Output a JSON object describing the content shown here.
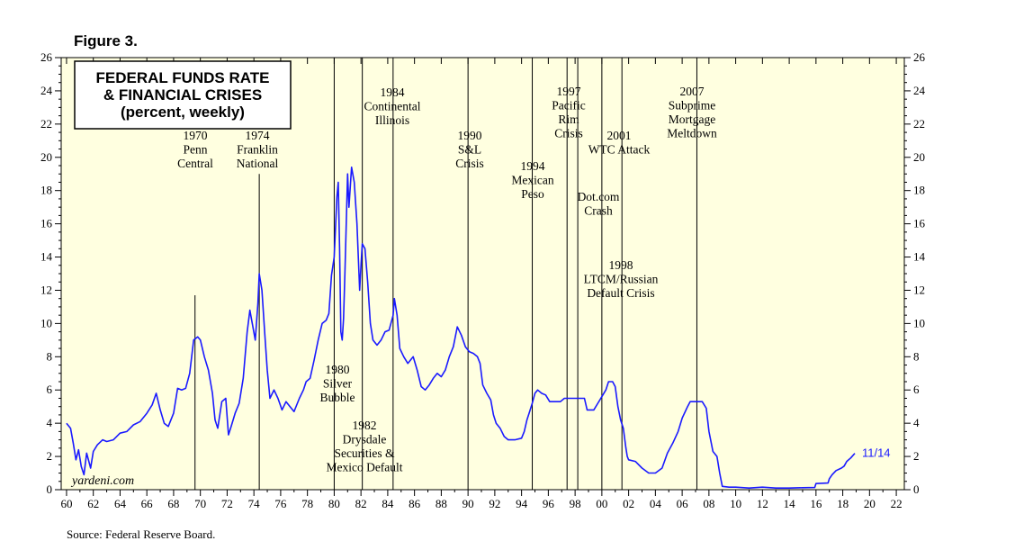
{
  "figure_label": "Figure 3.",
  "source": "Source: Federal Reserve Board.",
  "watermark": "yardeni.com",
  "colors": {
    "series": "#1a1aff",
    "plot_bg": "#ffffe0",
    "text": "#000000"
  },
  "chart_data": {
    "type": "line",
    "title_lines": [
      "FEDERAL FUNDS RATE",
      "& FINANCIAL CRISES",
      "(percent, weekly)"
    ],
    "x_range": [
      1959.6,
      2022.6
    ],
    "ylim": [
      0,
      26
    ],
    "y_ticks": [
      0,
      2,
      4,
      6,
      8,
      10,
      12,
      14,
      16,
      18,
      20,
      22,
      24,
      26
    ],
    "x_ticks": [
      {
        "year": 1960,
        "label": "60"
      },
      {
        "year": 1962,
        "label": "62"
      },
      {
        "year": 1964,
        "label": "64"
      },
      {
        "year": 1966,
        "label": "66"
      },
      {
        "year": 1968,
        "label": "68"
      },
      {
        "year": 1970,
        "label": "70"
      },
      {
        "year": 1972,
        "label": "72"
      },
      {
        "year": 1974,
        "label": "74"
      },
      {
        "year": 1976,
        "label": "76"
      },
      {
        "year": 1978,
        "label": "78"
      },
      {
        "year": 1980,
        "label": "80"
      },
      {
        "year": 1982,
        "label": "82"
      },
      {
        "year": 1984,
        "label": "84"
      },
      {
        "year": 1986,
        "label": "86"
      },
      {
        "year": 1988,
        "label": "88"
      },
      {
        "year": 1990,
        "label": "90"
      },
      {
        "year": 1992,
        "label": "92"
      },
      {
        "year": 1994,
        "label": "94"
      },
      {
        "year": 1996,
        "label": "96"
      },
      {
        "year": 1998,
        "label": "98"
      },
      {
        "year": 2000,
        "label": "00"
      },
      {
        "year": 2002,
        "label": "02"
      },
      {
        "year": 2004,
        "label": "04"
      },
      {
        "year": 2006,
        "label": "06"
      },
      {
        "year": 2008,
        "label": "08"
      },
      {
        "year": 2010,
        "label": "10"
      },
      {
        "year": 2012,
        "label": "12"
      },
      {
        "year": 2014,
        "label": "14"
      },
      {
        "year": 2016,
        "label": "16"
      },
      {
        "year": 2018,
        "label": "18"
      },
      {
        "year": 2020,
        "label": "20"
      },
      {
        "year": 2022,
        "label": "22"
      }
    ],
    "end_label": "11/14",
    "grid": false,
    "series": [
      {
        "points": [
          [
            1960.0,
            4.0
          ],
          [
            1960.3,
            3.7
          ],
          [
            1960.5,
            2.8
          ],
          [
            1960.7,
            1.8
          ],
          [
            1960.9,
            2.4
          ],
          [
            1961.1,
            1.4
          ],
          [
            1961.3,
            0.9
          ],
          [
            1961.5,
            2.2
          ],
          [
            1961.8,
            1.3
          ],
          [
            1962.0,
            2.3
          ],
          [
            1962.3,
            2.7
          ],
          [
            1962.7,
            3.0
          ],
          [
            1963.0,
            2.9
          ],
          [
            1963.5,
            3.0
          ],
          [
            1964.0,
            3.4
          ],
          [
            1964.5,
            3.5
          ],
          [
            1965.0,
            3.9
          ],
          [
            1965.5,
            4.1
          ],
          [
            1966.0,
            4.6
          ],
          [
            1966.4,
            5.1
          ],
          [
            1966.7,
            5.8
          ],
          [
            1967.0,
            4.8
          ],
          [
            1967.3,
            4.0
          ],
          [
            1967.6,
            3.8
          ],
          [
            1968.0,
            4.6
          ],
          [
            1968.3,
            6.1
          ],
          [
            1968.6,
            6.0
          ],
          [
            1968.9,
            6.1
          ],
          [
            1969.2,
            7.0
          ],
          [
            1969.5,
            9.0
          ],
          [
            1969.8,
            9.2
          ],
          [
            1970.0,
            9.0
          ],
          [
            1970.3,
            8.0
          ],
          [
            1970.6,
            7.2
          ],
          [
            1970.9,
            5.8
          ],
          [
            1971.1,
            4.2
          ],
          [
            1971.3,
            3.7
          ],
          [
            1971.6,
            5.3
          ],
          [
            1971.9,
            5.5
          ],
          [
            1972.1,
            3.3
          ],
          [
            1972.3,
            3.8
          ],
          [
            1972.6,
            4.6
          ],
          [
            1972.9,
            5.2
          ],
          [
            1973.2,
            6.7
          ],
          [
            1973.5,
            9.5
          ],
          [
            1973.7,
            10.8
          ],
          [
            1973.9,
            9.9
          ],
          [
            1974.1,
            9.0
          ],
          [
            1974.3,
            11.2
          ],
          [
            1974.4,
            13.0
          ],
          [
            1974.6,
            12.0
          ],
          [
            1974.8,
            9.5
          ],
          [
            1975.0,
            7.2
          ],
          [
            1975.2,
            5.5
          ],
          [
            1975.5,
            6.0
          ],
          [
            1975.8,
            5.5
          ],
          [
            1976.1,
            4.8
          ],
          [
            1976.4,
            5.3
          ],
          [
            1976.7,
            5.0
          ],
          [
            1977.0,
            4.7
          ],
          [
            1977.4,
            5.5
          ],
          [
            1977.7,
            6.0
          ],
          [
            1977.9,
            6.5
          ],
          [
            1978.2,
            6.7
          ],
          [
            1978.5,
            7.8
          ],
          [
            1978.8,
            9.0
          ],
          [
            1979.1,
            10.0
          ],
          [
            1979.4,
            10.2
          ],
          [
            1979.6,
            10.6
          ],
          [
            1979.8,
            12.9
          ],
          [
            1980.0,
            14.0
          ],
          [
            1980.2,
            17.6
          ],
          [
            1980.3,
            18.5
          ],
          [
            1980.4,
            14.5
          ],
          [
            1980.5,
            9.5
          ],
          [
            1980.6,
            9.0
          ],
          [
            1980.7,
            10.3
          ],
          [
            1980.8,
            13.0
          ],
          [
            1981.0,
            19.0
          ],
          [
            1981.1,
            17.0
          ],
          [
            1981.3,
            19.4
          ],
          [
            1981.5,
            18.5
          ],
          [
            1981.7,
            16.0
          ],
          [
            1981.9,
            12.0
          ],
          [
            1982.0,
            13.5
          ],
          [
            1982.1,
            14.8
          ],
          [
            1982.3,
            14.5
          ],
          [
            1982.5,
            12.5
          ],
          [
            1982.7,
            10.0
          ],
          [
            1982.9,
            9.0
          ],
          [
            1983.2,
            8.7
          ],
          [
            1983.5,
            9.0
          ],
          [
            1983.8,
            9.5
          ],
          [
            1984.1,
            9.6
          ],
          [
            1984.4,
            10.5
          ],
          [
            1984.5,
            11.5
          ],
          [
            1984.7,
            10.5
          ],
          [
            1984.9,
            8.5
          ],
          [
            1985.2,
            8.0
          ],
          [
            1985.5,
            7.6
          ],
          [
            1985.9,
            8.0
          ],
          [
            1986.2,
            7.2
          ],
          [
            1986.5,
            6.2
          ],
          [
            1986.8,
            6.0
          ],
          [
            1987.1,
            6.3
          ],
          [
            1987.4,
            6.7
          ],
          [
            1987.7,
            7.0
          ],
          [
            1988.0,
            6.8
          ],
          [
            1988.3,
            7.2
          ],
          [
            1988.6,
            8.0
          ],
          [
            1988.9,
            8.6
          ],
          [
            1989.2,
            9.8
          ],
          [
            1989.5,
            9.3
          ],
          [
            1989.8,
            8.6
          ],
          [
            1990.1,
            8.3
          ],
          [
            1990.4,
            8.2
          ],
          [
            1990.7,
            8.0
          ],
          [
            1990.9,
            7.6
          ],
          [
            1991.1,
            6.3
          ],
          [
            1991.4,
            5.8
          ],
          [
            1991.7,
            5.4
          ],
          [
            1991.9,
            4.5
          ],
          [
            1992.1,
            4.0
          ],
          [
            1992.4,
            3.7
          ],
          [
            1992.7,
            3.2
          ],
          [
            1993.0,
            3.0
          ],
          [
            1993.5,
            3.0
          ],
          [
            1994.0,
            3.1
          ],
          [
            1994.2,
            3.5
          ],
          [
            1994.4,
            4.2
          ],
          [
            1994.6,
            4.7
          ],
          [
            1994.8,
            5.2
          ],
          [
            1995.0,
            5.8
          ],
          [
            1995.2,
            6.0
          ],
          [
            1995.5,
            5.8
          ],
          [
            1995.8,
            5.7
          ],
          [
            1996.1,
            5.3
          ],
          [
            1996.5,
            5.3
          ],
          [
            1996.9,
            5.3
          ],
          [
            1997.2,
            5.5
          ],
          [
            1997.6,
            5.5
          ],
          [
            1998.0,
            5.5
          ],
          [
            1998.4,
            5.5
          ],
          [
            1998.7,
            5.5
          ],
          [
            1998.9,
            4.8
          ],
          [
            1999.1,
            4.8
          ],
          [
            1999.4,
            4.8
          ],
          [
            1999.7,
            5.2
          ],
          [
            2000.0,
            5.6
          ],
          [
            2000.3,
            6.0
          ],
          [
            2000.5,
            6.5
          ],
          [
            2000.8,
            6.5
          ],
          [
            2001.0,
            6.2
          ],
          [
            2001.2,
            5.0
          ],
          [
            2001.4,
            4.2
          ],
          [
            2001.6,
            3.7
          ],
          [
            2001.8,
            2.5
          ],
          [
            2001.9,
            2.0
          ],
          [
            2002.0,
            1.8
          ],
          [
            2002.5,
            1.7
          ],
          [
            2003.0,
            1.3
          ],
          [
            2003.5,
            1.0
          ],
          [
            2004.0,
            1.0
          ],
          [
            2004.5,
            1.3
          ],
          [
            2004.9,
            2.2
          ],
          [
            2005.3,
            2.8
          ],
          [
            2005.7,
            3.5
          ],
          [
            2006.0,
            4.3
          ],
          [
            2006.4,
            5.0
          ],
          [
            2006.6,
            5.3
          ],
          [
            2007.0,
            5.3
          ],
          [
            2007.5,
            5.3
          ],
          [
            2007.8,
            4.9
          ],
          [
            2008.0,
            3.5
          ],
          [
            2008.3,
            2.3
          ],
          [
            2008.6,
            2.0
          ],
          [
            2008.8,
            1.0
          ],
          [
            2009.0,
            0.2
          ],
          [
            2009.5,
            0.15
          ],
          [
            2010.0,
            0.15
          ],
          [
            2011.0,
            0.1
          ],
          [
            2012.0,
            0.15
          ],
          [
            2013.0,
            0.1
          ],
          [
            2014.0,
            0.1
          ],
          [
            2015.0,
            0.12
          ],
          [
            2015.9,
            0.13
          ],
          [
            2016.0,
            0.37
          ],
          [
            2016.9,
            0.4
          ],
          [
            2017.0,
            0.66
          ],
          [
            2017.2,
            0.9
          ],
          [
            2017.5,
            1.15
          ],
          [
            2017.9,
            1.3
          ],
          [
            2018.1,
            1.42
          ],
          [
            2018.3,
            1.7
          ],
          [
            2018.6,
            1.91
          ],
          [
            2018.9,
            2.19
          ]
        ]
      }
    ],
    "annotations": [
      {
        "lines": [
          "1970",
          "Penn",
          "Central"
        ],
        "line_x": 1969.6,
        "line_top": 11.7,
        "line_bottom": 0
      },
      {
        "lines": [
          "1974",
          "Franklin",
          "National"
        ],
        "line_x": 1974.4,
        "line_top": 19.0,
        "line_bottom": 0
      },
      {
        "lines": [
          "1980",
          "Silver",
          "Bubble"
        ],
        "line_x": 1980.0,
        "line_top": 26,
        "line_bottom": 0
      },
      {
        "lines": [
          "1982",
          "Drysdale",
          "Securities &",
          "Mexico Default"
        ],
        "line_x": 1982.1,
        "line_top": 26,
        "line_bottom": 0
      },
      {
        "lines": [
          "1984",
          "Continental",
          "Illinois"
        ],
        "line_x": 1984.4,
        "line_top": 26,
        "line_bottom": 0
      },
      {
        "lines": [
          "1990",
          "S&L",
          "Crisis"
        ],
        "line_x": 1990.0,
        "line_top": 26,
        "line_bottom": 0
      },
      {
        "lines": [
          "1994",
          "Mexican",
          "Peso"
        ],
        "line_x": 1994.8,
        "line_top": 26,
        "line_bottom": 0
      },
      {
        "lines": [
          "1997",
          "Pacific",
          "Rim",
          "Crisis"
        ],
        "line_x": 1997.4,
        "line_top": 26,
        "line_bottom": 0
      },
      {
        "lines": [
          "1998",
          "LTCM/Russian",
          "Default Crisis"
        ],
        "line_x": 1998.2,
        "line_top": 26,
        "line_bottom": 0
      },
      {
        "lines": [
          "Dot.com",
          "Crash"
        ],
        "line_x": 2000.0,
        "line_top": 26,
        "line_bottom": 0
      },
      {
        "lines": [
          "2001",
          "WTC Attack"
        ],
        "line_x": 2001.5,
        "line_top": 26,
        "line_bottom": 0
      },
      {
        "lines": [
          "2007",
          "Subprime",
          "Mortgage",
          "Meltdown"
        ],
        "line_x": 2007.1,
        "line_top": 26,
        "line_bottom": 0
      }
    ]
  }
}
